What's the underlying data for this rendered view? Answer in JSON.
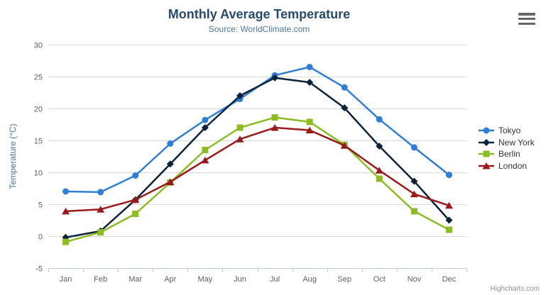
{
  "credit": {
    "label": "Highcharts.com"
  },
  "context_menu": {
    "icon": "hamburger-icon"
  },
  "chart_data": {
    "type": "line",
    "title": "Monthly Average Temperature",
    "subtitle": "Source: WorldClimate.com",
    "xlabel": "",
    "ylabel": "Temperature (°C)",
    "categories": [
      "Jan",
      "Feb",
      "Mar",
      "Apr",
      "May",
      "Jun",
      "Jul",
      "Aug",
      "Sep",
      "Oct",
      "Nov",
      "Dec"
    ],
    "ylim": [
      -5,
      30
    ],
    "yticks": [
      -5,
      0,
      5,
      10,
      15,
      20,
      25,
      30
    ],
    "grid": "horizontal",
    "legend_position": "right",
    "series": [
      {
        "name": "Tokyo",
        "color": "#2f7ed8",
        "marker": "circle",
        "values": [
          7.0,
          6.9,
          9.5,
          14.5,
          18.2,
          21.5,
          25.2,
          26.5,
          23.3,
          18.3,
          13.9,
          9.6
        ]
      },
      {
        "name": "New York",
        "color": "#0d233a",
        "marker": "diamond",
        "values": [
          -0.2,
          0.8,
          5.7,
          11.3,
          17.0,
          22.0,
          24.8,
          24.1,
          20.1,
          14.1,
          8.6,
          2.5
        ]
      },
      {
        "name": "Berlin",
        "color": "#8bbc21",
        "marker": "square",
        "values": [
          -0.9,
          0.6,
          3.5,
          8.4,
          13.5,
          17.0,
          18.6,
          17.9,
          14.3,
          9.0,
          3.9,
          1.0
        ]
      },
      {
        "name": "London",
        "color": "#9a1919",
        "marker": "triangle",
        "values": [
          3.9,
          4.2,
          5.7,
          8.5,
          11.9,
          15.2,
          17.0,
          16.6,
          14.2,
          10.3,
          6.6,
          4.8
        ]
      }
    ],
    "colors": {
      "title": "#274b6d",
      "subtitle": "#4d759e",
      "axis_labels": "#606060",
      "yaxis_title": "#4d759e",
      "gridline": "#d8d8d8",
      "xaxis_line": "#c0d0e0"
    }
  }
}
